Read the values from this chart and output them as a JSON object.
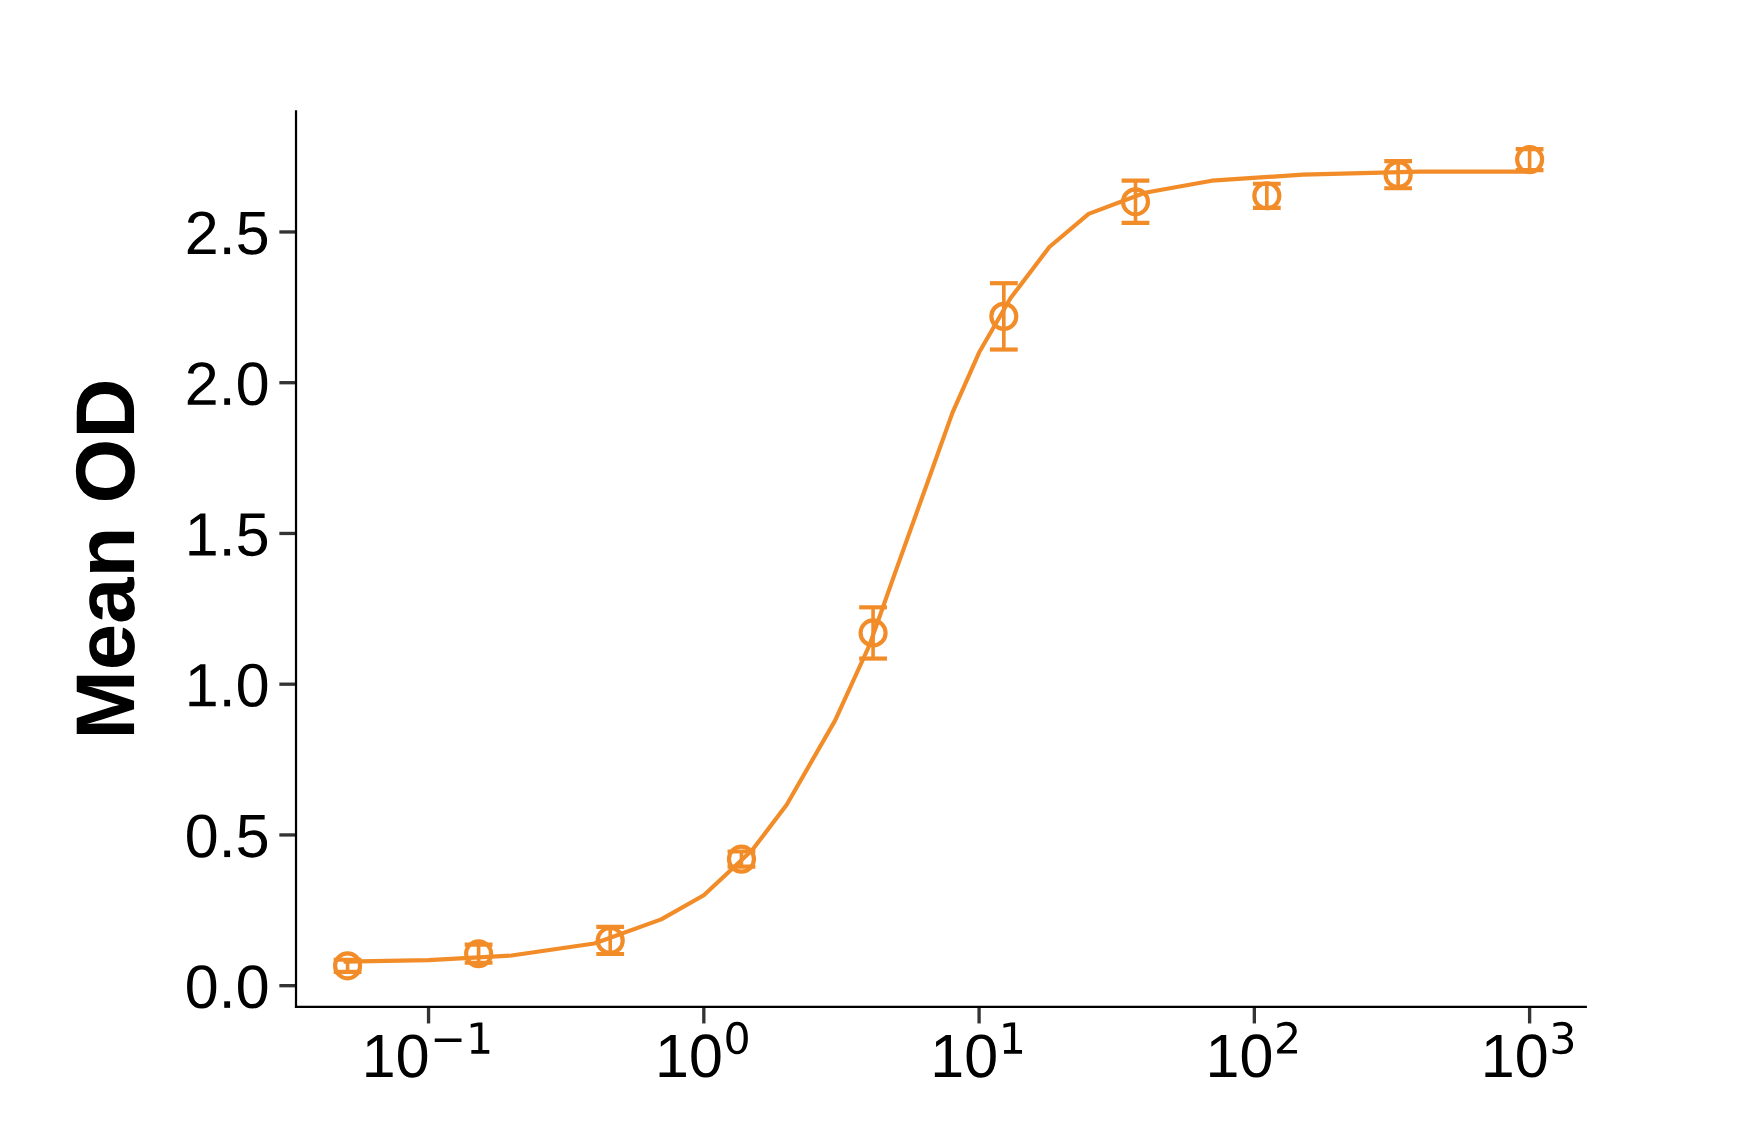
{
  "chart_data": {
    "type": "scatter",
    "ylabel": "Mean OD",
    "log": "x",
    "grid": false,
    "xlim": [
      0.033,
      1600
    ],
    "ylim": [
      -0.07,
      2.9
    ],
    "xticks": [
      {
        "value": 0.1,
        "label": "10$^{−1}$"
      },
      {
        "value": 1,
        "label": "10$^{0}$"
      },
      {
        "value": 10,
        "label": "10$^{1}$"
      },
      {
        "value": 100,
        "label": "10$^{2}$"
      },
      {
        "value": 1000,
        "label": "10$^{3}$"
      }
    ],
    "yticks": [
      {
        "value": 0,
        "label": "0.0"
      },
      0.5,
      {
        "value": 1,
        "label": "1.0"
      },
      1.5,
      {
        "value": 2,
        "label": "2.0"
      },
      2.5
    ],
    "series": [
      {
        "color": "#f28c28",
        "marker": "circle",
        "x": [
          0.0508,
          0.152,
          0.457,
          1.37,
          4.12,
          12.3,
          37,
          111,
          333,
          1000
        ],
        "values": [
          0.066,
          0.106,
          0.15,
          0.42,
          1.17,
          2.22,
          2.6,
          2.62,
          2.69,
          2.74
        ],
        "errors": [
          0.02,
          0.03,
          0.045,
          0.025,
          0.085,
          0.11,
          0.07,
          0.04,
          0.045,
          0.035
        ]
      },
      {
        "type": "line",
        "color": "#f28c28",
        "marker": "none",
        "line_style": "solid",
        "x": [
          0.05,
          0.1,
          0.2,
          0.4,
          0.7,
          1,
          1.5,
          2,
          3,
          4,
          5,
          6.5,
          8,
          10,
          13,
          18,
          25,
          40,
          70,
          150,
          400,
          1000
        ],
        "values": [
          0.08,
          0.085,
          0.1,
          0.14,
          0.22,
          0.3,
          0.45,
          0.6,
          0.88,
          1.13,
          1.38,
          1.67,
          1.9,
          2.1,
          2.28,
          2.45,
          2.56,
          2.63,
          2.67,
          2.69,
          2.7,
          2.7
        ]
      }
    ]
  }
}
